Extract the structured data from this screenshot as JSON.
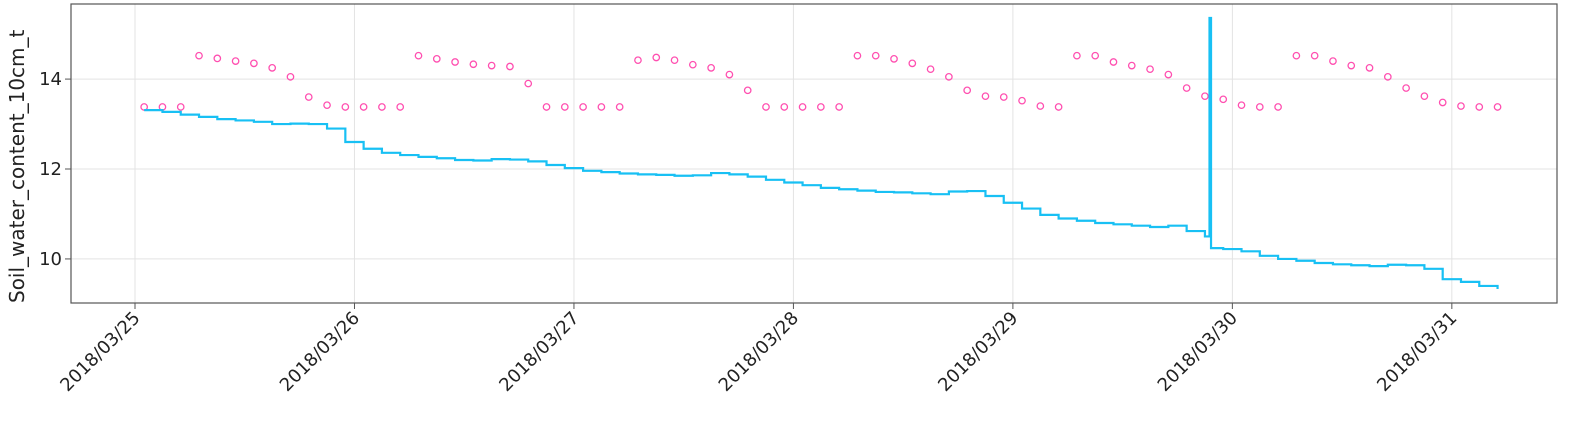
{
  "chart_data": {
    "type": "line",
    "ylabel": "Soil_water_content_10cm_t",
    "xlim": [
      "2018/03/24 17:00",
      "2018/03/31 11:30"
    ],
    "xticks": [
      "2018/03/25",
      "2018/03/26",
      "2018/03/27",
      "2018/03/28",
      "2018/03/29",
      "2018/03/30",
      "2018/03/31"
    ],
    "ylim": [
      9.02,
      15.67
    ],
    "yticks": [
      10,
      12,
      14
    ],
    "grid": true,
    "series": [
      {
        "type": "scatter",
        "color": "#ff4fb0",
        "x": [
          "2018/03/25 01:00",
          "2018/03/25 03:00",
          "2018/03/25 05:00",
          "2018/03/25 07:00",
          "2018/03/25 09:00",
          "2018/03/25 11:00",
          "2018/03/25 13:00",
          "2018/03/25 15:00",
          "2018/03/25 17:00",
          "2018/03/25 19:00",
          "2018/03/25 21:00",
          "2018/03/25 23:00",
          "2018/03/26 01:00",
          "2018/03/26 03:00",
          "2018/03/26 05:00",
          "2018/03/26 07:00",
          "2018/03/26 09:00",
          "2018/03/26 11:00",
          "2018/03/26 13:00",
          "2018/03/26 15:00",
          "2018/03/26 17:00",
          "2018/03/26 19:00",
          "2018/03/26 21:00",
          "2018/03/26 23:00",
          "2018/03/27 01:00",
          "2018/03/27 03:00",
          "2018/03/27 05:00",
          "2018/03/27 07:00",
          "2018/03/27 09:00",
          "2018/03/27 11:00",
          "2018/03/27 13:00",
          "2018/03/27 15:00",
          "2018/03/27 17:00",
          "2018/03/27 19:00",
          "2018/03/27 21:00",
          "2018/03/27 23:00",
          "2018/03/28 01:00",
          "2018/03/28 03:00",
          "2018/03/28 05:00",
          "2018/03/28 07:00",
          "2018/03/28 09:00",
          "2018/03/28 11:00",
          "2018/03/28 13:00",
          "2018/03/28 15:00",
          "2018/03/28 17:00",
          "2018/03/28 19:00",
          "2018/03/28 21:00",
          "2018/03/28 23:00",
          "2018/03/29 01:00",
          "2018/03/29 03:00",
          "2018/03/29 05:00",
          "2018/03/29 07:00",
          "2018/03/29 09:00",
          "2018/03/29 11:00",
          "2018/03/29 13:00",
          "2018/03/29 15:00",
          "2018/03/29 17:00",
          "2018/03/29 19:00",
          "2018/03/29 21:00",
          "2018/03/29 23:00",
          "2018/03/30 01:00",
          "2018/03/30 03:00",
          "2018/03/30 05:00",
          "2018/03/30 07:00",
          "2018/03/30 09:00",
          "2018/03/30 11:00",
          "2018/03/30 13:00",
          "2018/03/30 15:00",
          "2018/03/30 17:00",
          "2018/03/30 19:00",
          "2018/03/30 21:00",
          "2018/03/30 23:00",
          "2018/03/31 01:00",
          "2018/03/31 03:00",
          "2018/03/31 05:00"
        ],
        "values": [
          13.38,
          13.38,
          13.38,
          14.52,
          14.46,
          14.4,
          14.35,
          14.25,
          14.05,
          13.6,
          13.42,
          13.38,
          13.38,
          13.38,
          13.38,
          14.52,
          14.45,
          14.38,
          14.33,
          14.3,
          14.28,
          13.9,
          13.38,
          13.38,
          13.38,
          13.38,
          13.38,
          14.42,
          14.48,
          14.42,
          14.32,
          14.25,
          14.1,
          13.75,
          13.38,
          13.38,
          13.38,
          13.38,
          13.38,
          14.52,
          14.52,
          14.45,
          14.35,
          14.22,
          14.05,
          13.75,
          13.62,
          13.6,
          13.52,
          13.4,
          13.38,
          14.52,
          14.52,
          14.38,
          14.3,
          14.22,
          14.1,
          13.8,
          13.62,
          13.55,
          13.42,
          13.38,
          13.38,
          14.52,
          14.52,
          14.4,
          14.3,
          14.25,
          14.05,
          13.8,
          13.62,
          13.48,
          13.4,
          13.38,
          13.38
        ]
      },
      {
        "type": "step",
        "color": "#18c0f4",
        "x": [
          "2018/03/25 01:00",
          "2018/03/25 03:00",
          "2018/03/25 05:00",
          "2018/03/25 07:00",
          "2018/03/25 09:00",
          "2018/03/25 11:00",
          "2018/03/25 13:00",
          "2018/03/25 15:00",
          "2018/03/25 17:00",
          "2018/03/25 19:00",
          "2018/03/25 21:00",
          "2018/03/25 23:00",
          "2018/03/26 01:00",
          "2018/03/26 03:00",
          "2018/03/26 05:00",
          "2018/03/26 07:00",
          "2018/03/26 09:00",
          "2018/03/26 11:00",
          "2018/03/26 13:00",
          "2018/03/26 15:00",
          "2018/03/26 17:00",
          "2018/03/26 19:00",
          "2018/03/26 21:00",
          "2018/03/26 23:00",
          "2018/03/27 01:00",
          "2018/03/27 03:00",
          "2018/03/27 05:00",
          "2018/03/27 07:00",
          "2018/03/27 09:00",
          "2018/03/27 11:00",
          "2018/03/27 13:00",
          "2018/03/27 15:00",
          "2018/03/27 17:00",
          "2018/03/27 19:00",
          "2018/03/27 21:00",
          "2018/03/27 23:00",
          "2018/03/28 01:00",
          "2018/03/28 03:00",
          "2018/03/28 05:00",
          "2018/03/28 07:00",
          "2018/03/28 09:00",
          "2018/03/28 11:00",
          "2018/03/28 13:00",
          "2018/03/28 15:00",
          "2018/03/28 17:00",
          "2018/03/28 19:00",
          "2018/03/28 21:00",
          "2018/03/28 23:00",
          "2018/03/29 01:00",
          "2018/03/29 03:00",
          "2018/03/29 05:00",
          "2018/03/29 07:00",
          "2018/03/29 09:00",
          "2018/03/29 11:00",
          "2018/03/29 13:00",
          "2018/03/29 15:00",
          "2018/03/29 17:00",
          "2018/03/29 19:00",
          "2018/03/29 21:00",
          "2018/03/29 21:30",
          "2018/03/29 21:40",
          "2018/03/29 23:00",
          "2018/03/30 01:00",
          "2018/03/30 03:00",
          "2018/03/30 05:00",
          "2018/03/30 07:00",
          "2018/03/30 09:00",
          "2018/03/30 11:00",
          "2018/03/30 13:00",
          "2018/03/30 15:00",
          "2018/03/30 17:00",
          "2018/03/30 19:00",
          "2018/03/30 21:00",
          "2018/03/30 23:00",
          "2018/03/31 01:00",
          "2018/03/31 03:00",
          "2018/03/31 05:00"
        ],
        "values": [
          13.31,
          13.27,
          13.21,
          13.16,
          13.11,
          13.08,
          13.05,
          13.0,
          13.01,
          13.0,
          12.9,
          12.6,
          12.45,
          12.36,
          12.31,
          12.27,
          12.24,
          12.2,
          12.19,
          12.22,
          12.21,
          12.17,
          12.09,
          12.02,
          11.96,
          11.93,
          11.9,
          11.88,
          11.87,
          11.85,
          11.86,
          11.91,
          11.88,
          11.83,
          11.76,
          11.7,
          11.64,
          11.58,
          11.55,
          11.52,
          11.49,
          11.48,
          11.46,
          11.44,
          11.5,
          11.51,
          11.4,
          11.25,
          11.12,
          10.98,
          10.9,
          10.85,
          10.8,
          10.77,
          10.74,
          10.71,
          10.74,
          10.62,
          10.5,
          15.36,
          10.24,
          10.22,
          10.17,
          10.07,
          10.0,
          9.96,
          9.91,
          9.88,
          9.86,
          9.84,
          9.87,
          9.86,
          9.78,
          9.55,
          9.49,
          9.4,
          9.33
        ]
      }
    ]
  }
}
